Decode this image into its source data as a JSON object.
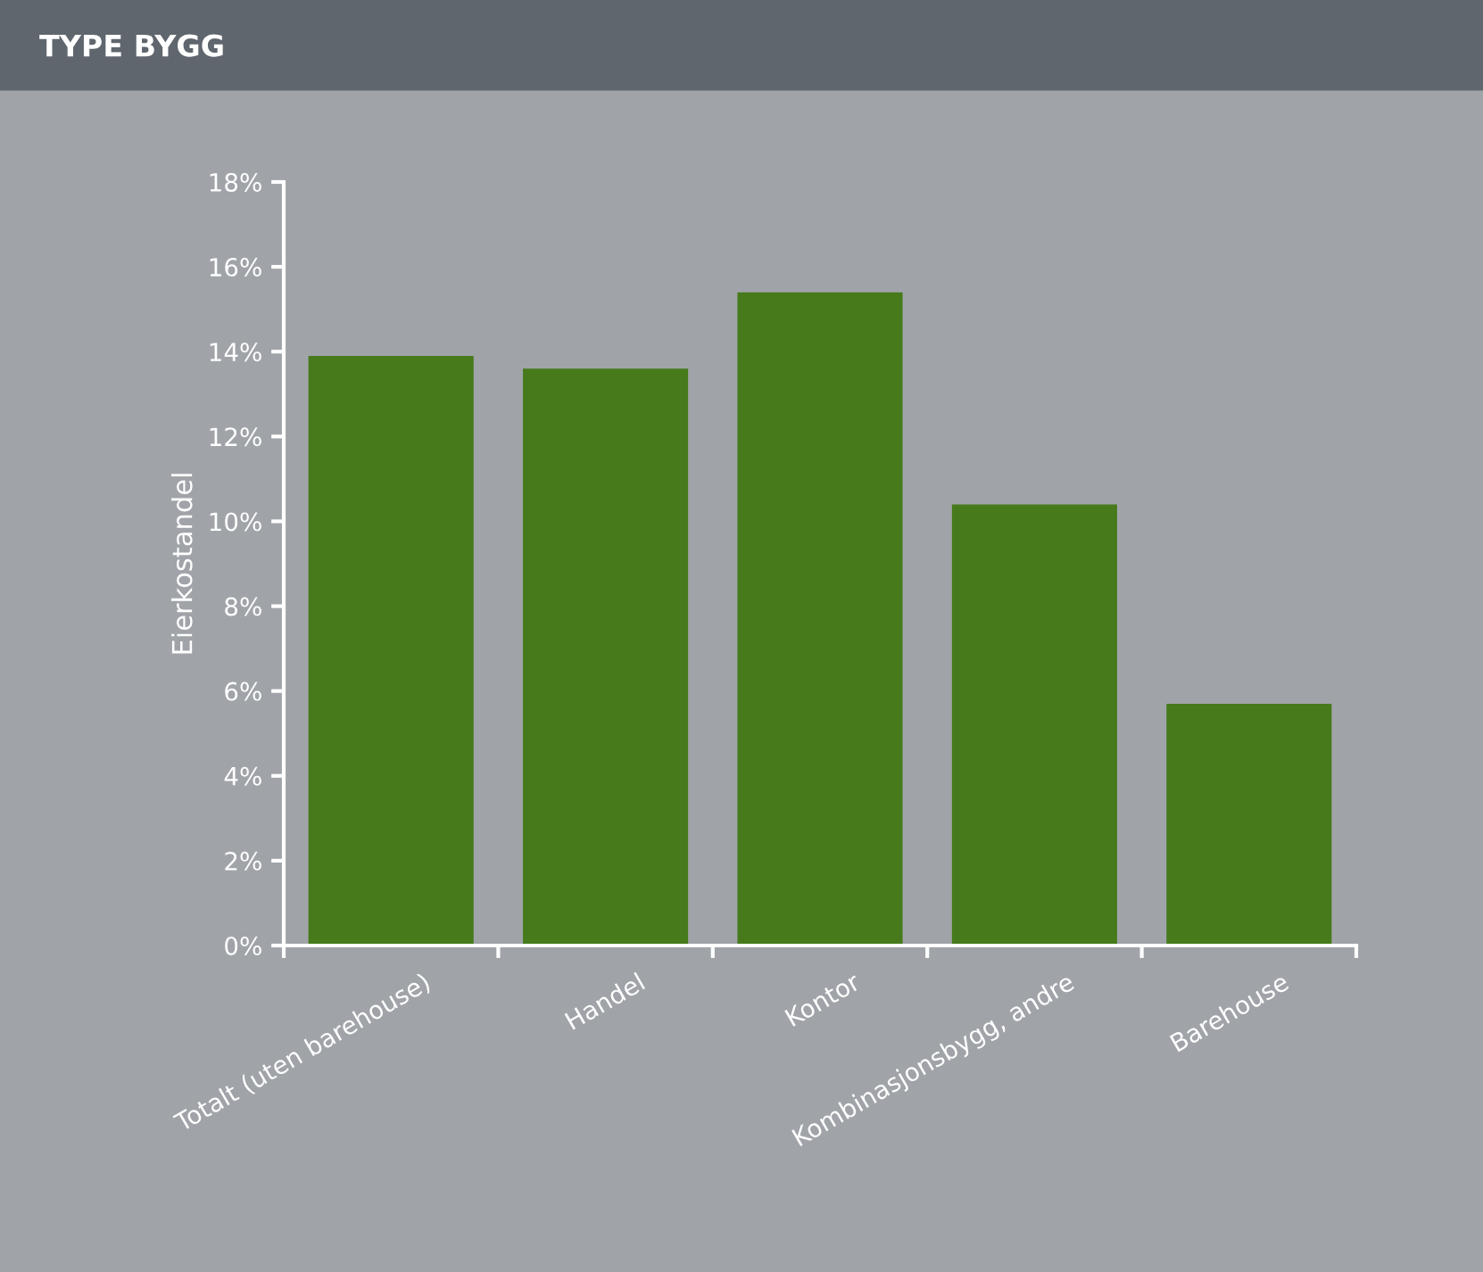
{
  "chart_data": {
    "type": "bar",
    "title": "TYPE BYGG",
    "ylabel": "Eierkostandel",
    "categories": [
      "Totalt (uten barehouse)",
      "Handel",
      "Kontor",
      "Kombinasjonsbygg, andre",
      "Barehouse"
    ],
    "values": [
      13.9,
      13.6,
      15.4,
      10.4,
      5.7
    ],
    "color": "#467a1b",
    "ylim": [
      0,
      18
    ],
    "yticks": [
      {
        "value": 0,
        "label": "0%"
      },
      {
        "value": 2,
        "label": "2%"
      },
      {
        "value": 4,
        "label": "4%"
      },
      {
        "value": 6,
        "label": "6%"
      },
      {
        "value": 8,
        "label": "8%"
      },
      {
        "value": 10,
        "label": "10%"
      },
      {
        "value": 12,
        "label": "12%"
      },
      {
        "value": 14,
        "label": "14%"
      },
      {
        "value": 16,
        "label": "16%"
      },
      {
        "value": 18,
        "label": "18%"
      }
    ],
    "grid": false
  }
}
